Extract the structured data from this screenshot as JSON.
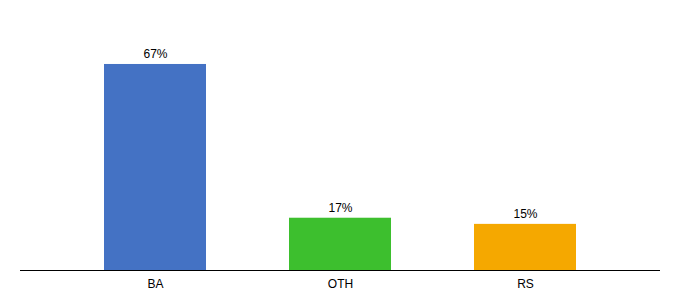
{
  "chart_data": {
    "type": "bar",
    "categories": [
      "BA",
      "OTH",
      "RS"
    ],
    "values": [
      67,
      17,
      15
    ],
    "value_labels": [
      "67%",
      "17%",
      "15%"
    ],
    "colors": [
      "#4472c4",
      "#3dbf2e",
      "#f5a800"
    ],
    "ylim": [
      0,
      80
    ],
    "data_labels": true,
    "tick_labels": "x",
    "grid": false
  }
}
